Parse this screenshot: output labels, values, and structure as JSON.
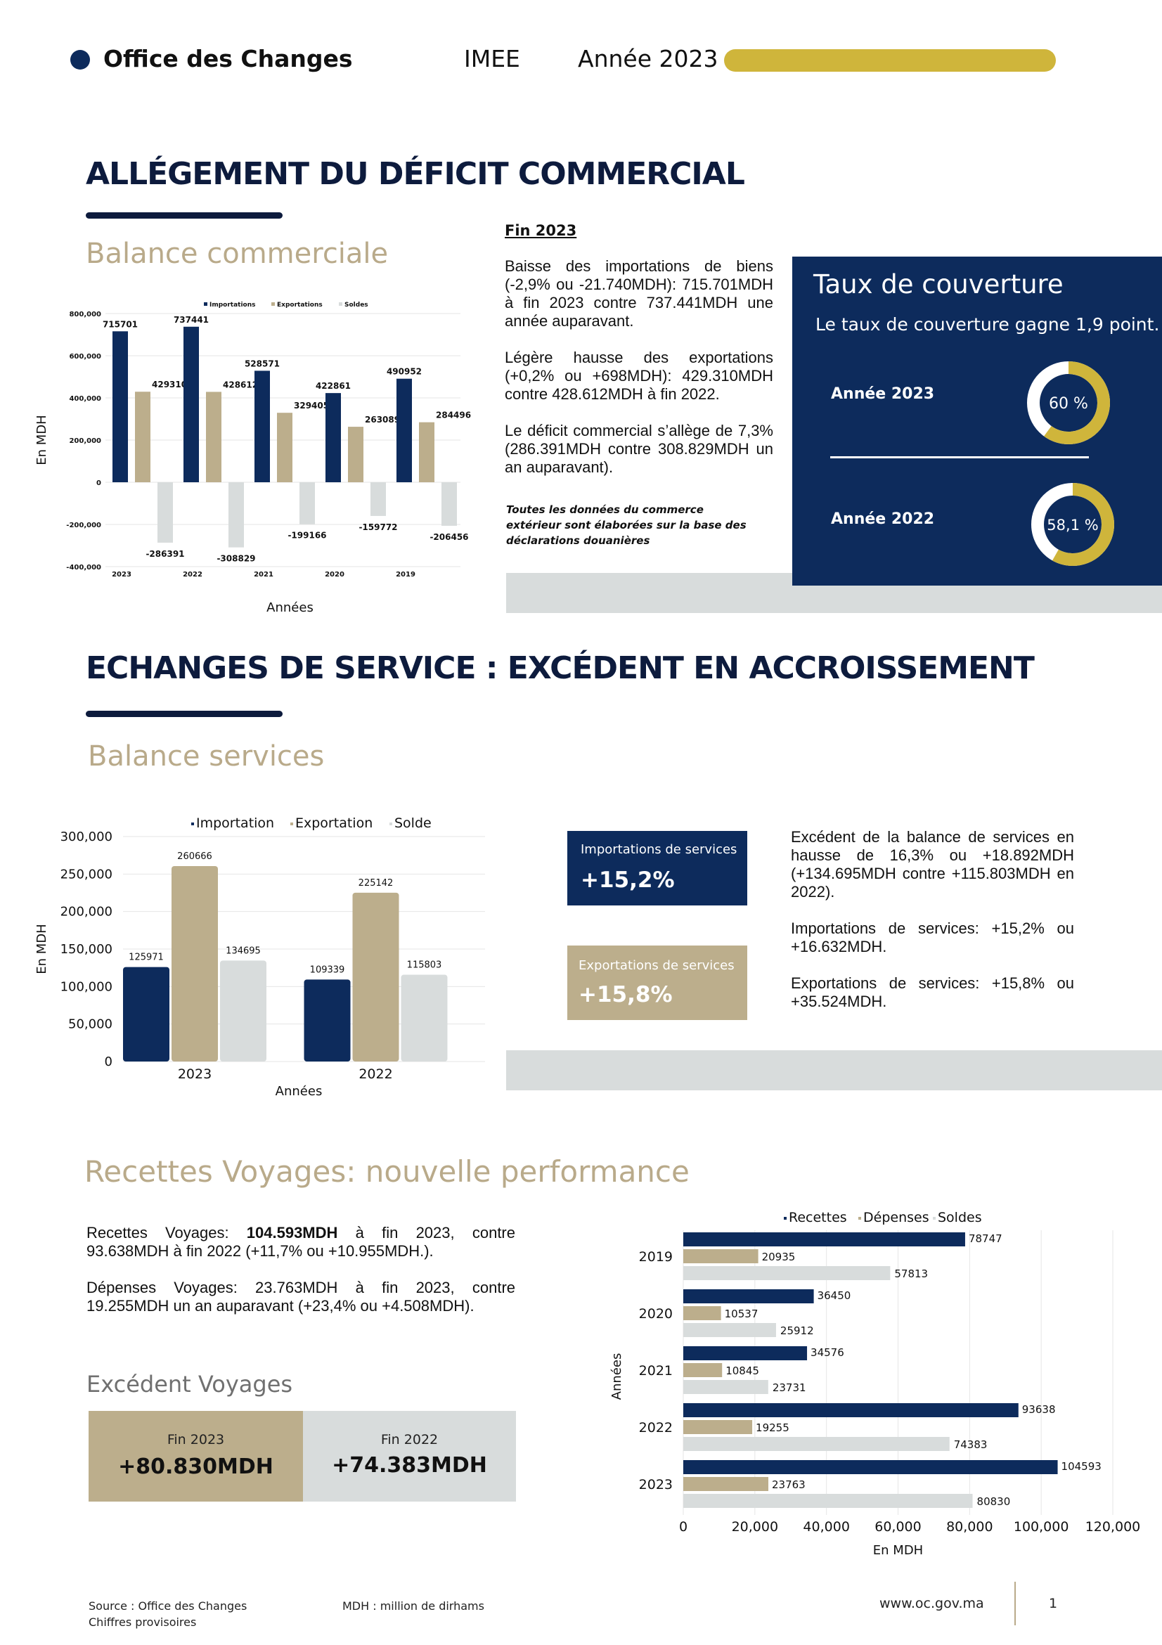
{
  "header": {
    "org": "Office des Changes",
    "code": "IMEE",
    "year": "Année 2023"
  },
  "section1": {
    "title": "ALLÉGEMENT DU DÉFICIT COMMERCIAL",
    "chart_title": "Balance commerciale",
    "text_title": "Fin 2023",
    "paragraphs": [
      "Baisse des importations de biens (-2,9% ou -21.740MDH): 715.701MDH à fin 2023 contre 737.441MDH une année auparavant.",
      "Légère hausse des exportations (+0,2% ou +698MDH): 429.310MDH contre 428.612MDH à fin 2022.",
      "Le déficit commercial s’allège de 7,3% (286.391MDH contre 308.829MDH un an auparavant)."
    ],
    "note": "Toutes les données du commerce extérieur sont élaborées sur la base des déclarations douanières",
    "coverage": {
      "title": "Taux de couverture",
      "subtitle": "Le taux de couverture gagne 1,9 point.",
      "rows": [
        {
          "label": "Année 2023",
          "value": "60 %",
          "percent": 60
        },
        {
          "label": "Année 2022",
          "value": "58,1 %",
          "percent": 58.1
        }
      ]
    }
  },
  "section2": {
    "title": "ECHANGES DE SERVICE : EXCÉDENT EN ACCROISSEMENT",
    "chart_title": "Balance services",
    "import_box": {
      "label": "Importations de services",
      "value": "+15,2%"
    },
    "export_box": {
      "label": "Exportations de services",
      "value": "+15,8%"
    },
    "paragraphs": [
      "Excédent de la balance de services en hausse de 16,3% ou +18.892MDH (+134.695MDH contre +115.803MDH en 2022).",
      "Importations de services: +15,2% ou +16.632MDH.",
      "Exportations de services: +15,8% ou +35.524MDH."
    ]
  },
  "section3": {
    "title": "Recettes Voyages: nouvelle performance",
    "p1_a": "Recettes Voyages: ",
    "p1_b": "104.593MDH",
    "p1_c": " à fin 2023, contre 93.638MDH à fin 2022 (+11,7% ou +10.955MDH.).",
    "p2": "Dépenses Voyages: 23.763MDH à fin 2023, contre 19.255MDH un an auparavant (+23,4% ou +4.508MDH).",
    "surplus_title": "Excédent Voyages",
    "surplus": [
      {
        "label": "Fin 2023",
        "value": "+80.830MDH"
      },
      {
        "label": "Fin 2022",
        "value": "+74.383MDH"
      }
    ]
  },
  "footer": {
    "source": "Source : Office des Changes",
    "provisional": "Chiffres provisoires",
    "unit_note": "MDH : million de dirhams",
    "website": "www.oc.gov.ma",
    "page": "1"
  },
  "colors": {
    "navy": "#0d2b5c",
    "beige": "#bcae8c",
    "grey": "#d8dcdc",
    "gold": "#cfb53b"
  },
  "chart_data": [
    {
      "type": "bar",
      "categories": [
        "2023",
        "2022",
        "2021",
        "2020",
        "2019"
      ],
      "series": [
        {
          "name": "Importations",
          "values": [
            715701,
            737441,
            528571,
            422861,
            490952
          ]
        },
        {
          "name": "Exportations",
          "values": [
            429310,
            428612,
            329405,
            263089,
            284496
          ]
        },
        {
          "name": "Soldes",
          "values": [
            -286391,
            -308829,
            -199166,
            -159772,
            -206456
          ]
        }
      ],
      "yticks": [
        "800,000",
        "600,000",
        "400,000",
        "200,000",
        "0",
        "-200,000",
        "-400,000"
      ],
      "ylim": [
        -400000,
        800000
      ],
      "xlabel": "Années",
      "ylabel": "En MDH",
      "legend": "top"
    },
    {
      "type": "bar",
      "categories": [
        "2023",
        "2022"
      ],
      "series": [
        {
          "name": "Importation",
          "values": [
            125971,
            109339
          ]
        },
        {
          "name": "Exportation",
          "values": [
            260666,
            225142
          ]
        },
        {
          "name": "Solde",
          "values": [
            134695,
            115803
          ]
        }
      ],
      "yticks": [
        "300,000",
        "250,000",
        "200,000",
        "150,000",
        "100,000",
        "50,000",
        "0"
      ],
      "ylim": [
        0,
        300000
      ],
      "xlabel": "Années",
      "ylabel": "En MDH",
      "legend": "top"
    },
    {
      "type": "bar",
      "orientation": "horizontal",
      "categories": [
        "2019",
        "2020",
        "2021",
        "2022",
        "2023"
      ],
      "series": [
        {
          "name": "Recettes",
          "values": [
            78747,
            36450,
            34576,
            93638,
            104593
          ]
        },
        {
          "name": "Dépenses",
          "values": [
            20935,
            10537,
            10845,
            19255,
            23763
          ]
        },
        {
          "name": "Soldes",
          "values": [
            57813,
            25912,
            23731,
            74383,
            80830
          ]
        }
      ],
      "xticks": [
        "0",
        "20,000",
        "40,000",
        "60,000",
        "80,000",
        "100,000",
        "120,000"
      ],
      "xlim": [
        0,
        120000
      ],
      "xlabel": "En MDH",
      "ylabel": "Années",
      "legend": "top"
    }
  ]
}
